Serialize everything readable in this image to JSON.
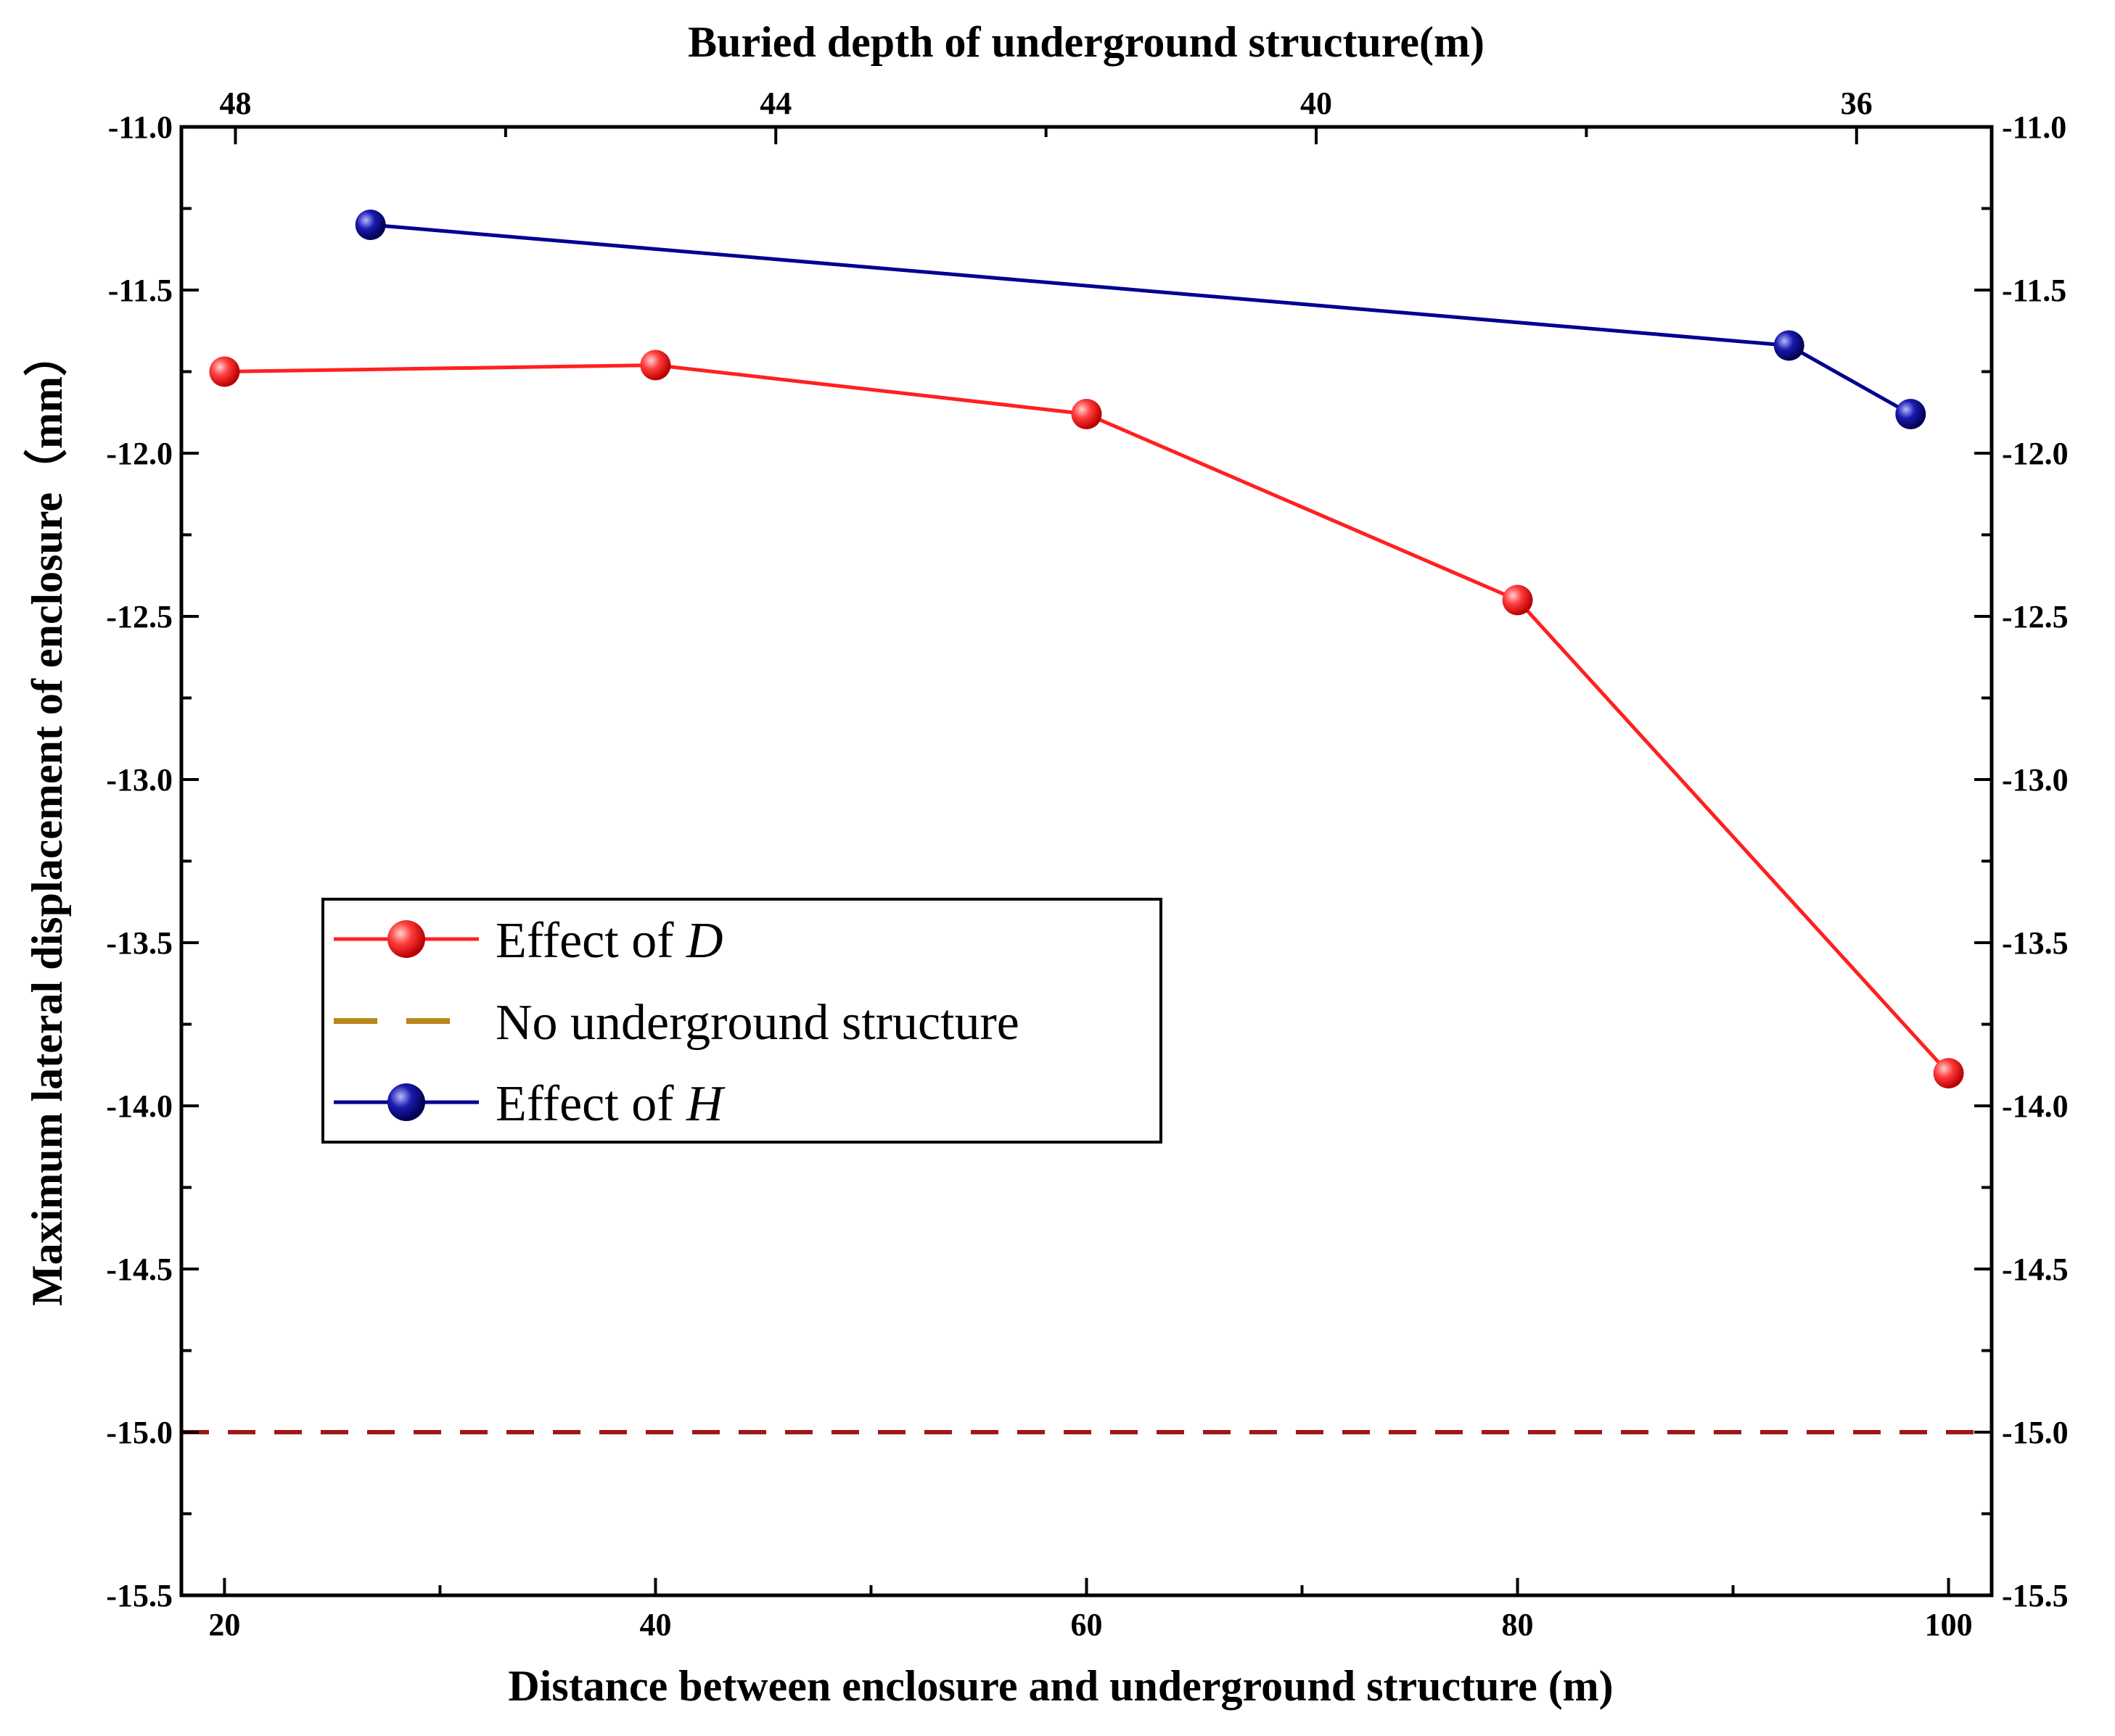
{
  "chart_data": {
    "type": "line",
    "title": "",
    "xlabel": "Distance between enclosure and underground structure (m)",
    "x2label": "Buried depth of underground structure(m)",
    "ylabel": "Maximum lateral displacement of enclosure（mm）",
    "xlim": [
      18,
      102
    ],
    "x2lim": [
      48.4,
      35.0
    ],
    "ylim": [
      -15.5,
      -11.0
    ],
    "xticks": [
      20,
      40,
      60,
      80,
      100
    ],
    "xtick_labels": [
      "20",
      "40",
      "60",
      "80",
      "100"
    ],
    "x2ticks": [
      48,
      44,
      40,
      36
    ],
    "x2tick_labels": [
      "48",
      "44",
      "40",
      "36"
    ],
    "yticks": [
      -11.0,
      -11.5,
      -12.0,
      -12.5,
      -13.0,
      -13.5,
      -14.0,
      -14.5,
      -15.0,
      -15.5
    ],
    "ytick_labels": [
      "-11.0",
      "-11.5",
      "-12.0",
      "-12.5",
      "-13.0",
      "-13.5",
      "-14.0",
      "-14.5",
      "-15.0",
      "-15.5"
    ],
    "series": [
      {
        "name": "Effect of D",
        "legend_prefix": "Effect of ",
        "legend_italic": "D",
        "axis": "bottom",
        "color": "#ff2020",
        "marker_color": "#ff3030",
        "x": [
          20,
          40,
          60,
          80,
          100
        ],
        "y": [
          -11.75,
          -11.73,
          -11.88,
          -12.45,
          -13.9
        ]
      },
      {
        "name": "No underground structure",
        "legend_prefix": "No underground structure",
        "legend_italic": "",
        "axis": "bottom",
        "color": "#a01818",
        "legend_color": "#b8861a",
        "dashed": true,
        "x": [
          18,
          102
        ],
        "y": [
          -15.0,
          -15.0
        ]
      },
      {
        "name": "Effect of H",
        "legend_prefix": "Effect of ",
        "legend_italic": "H",
        "axis": "top",
        "color": "#000090",
        "marker_color": "#10108a",
        "x": [
          47.0,
          36.5,
          35.6
        ],
        "y": [
          -11.3,
          -11.67,
          -11.88
        ]
      }
    ],
    "legend_position": "center-left"
  }
}
